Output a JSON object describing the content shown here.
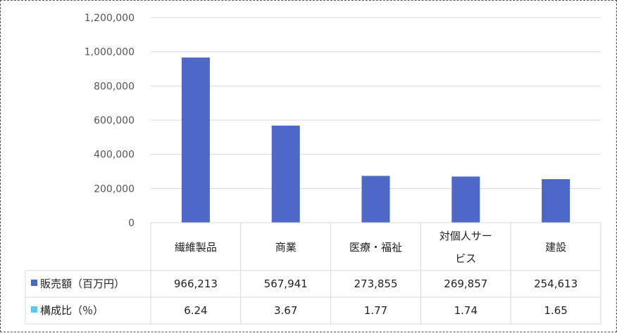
{
  "chart_data": {
    "type": "bar",
    "categories": [
      "繊維製品",
      "商業",
      "医療・福祉",
      "対個人サービス",
      "建設"
    ],
    "category_lines": [
      [
        "繊維製品"
      ],
      [
        "商業"
      ],
      [
        "医療・福祉"
      ],
      [
        "対個人サー",
        "ビス"
      ],
      [
        "建設"
      ]
    ],
    "series": [
      {
        "name": "販売額（百万円）",
        "values": [
          966213,
          567941,
          273855,
          269857,
          254613
        ],
        "labels": [
          "966,213",
          "567,941",
          "273,855",
          "269,857",
          "254,613"
        ],
        "color": "#4e68c8"
      },
      {
        "name": "構成比（％）",
        "values": [
          6.24,
          3.67,
          1.77,
          1.74,
          1.65
        ],
        "labels": [
          "6.24",
          "3.67",
          "1.77",
          "1.74",
          "1.65"
        ],
        "color": "#5bc8f0",
        "plotted": false
      }
    ],
    "yticks": [
      "0",
      "200,000",
      "400,000",
      "600,000",
      "800,000",
      "1,000,000",
      "1,200,000"
    ],
    "ylim": [
      0,
      1200000
    ],
    "grid": true,
    "legend": "data-table"
  }
}
